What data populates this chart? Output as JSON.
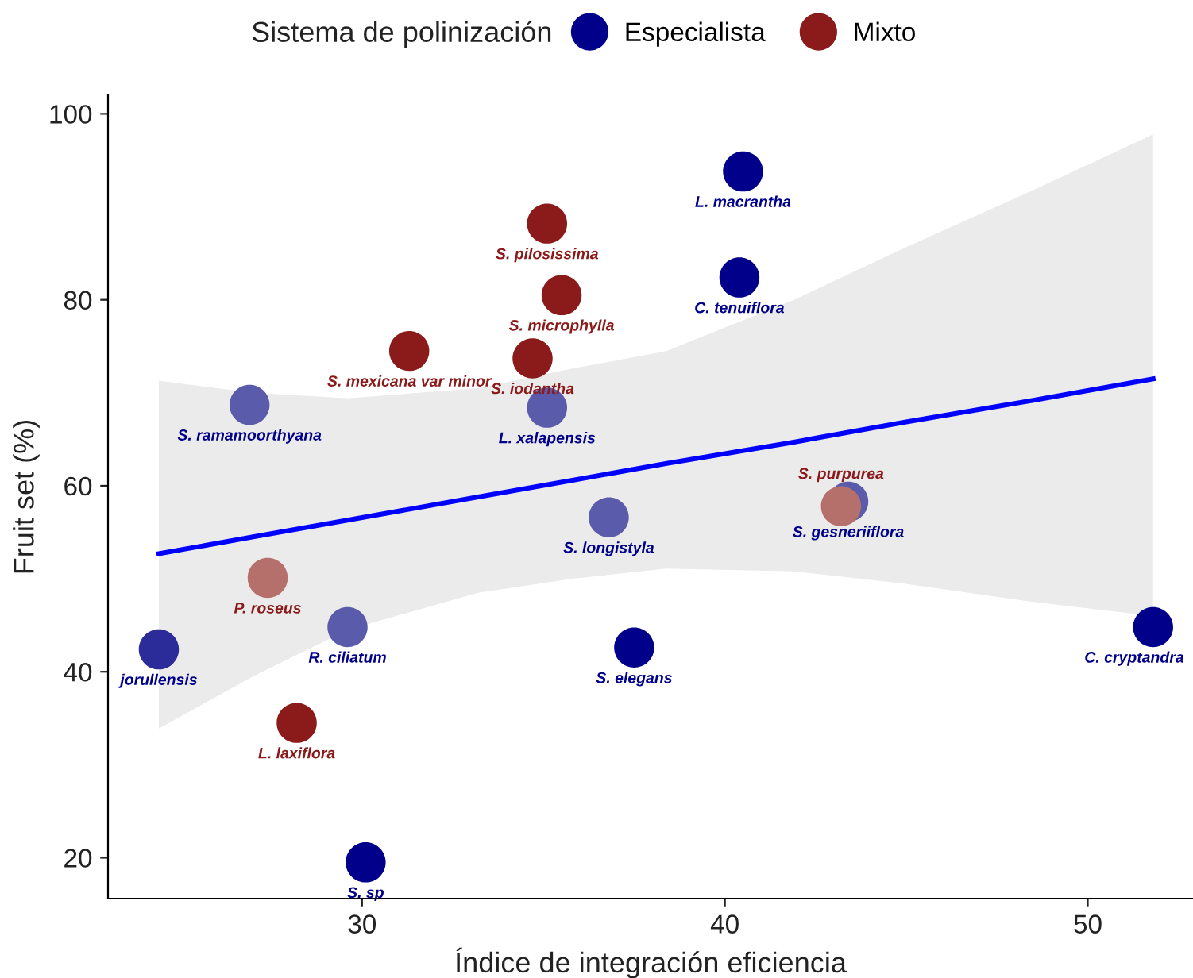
{
  "chart_data": {
    "type": "scatter",
    "xlabel": "Índice de integración eficiencia",
    "ylabel": "Fruit set (%)",
    "legend_title": "Sistema de polinización",
    "legend": "top",
    "grid": false,
    "xlim": [
      23.0,
      52.9
    ],
    "ylim": [
      15.6,
      102
    ],
    "xticks": [
      30,
      40,
      50
    ],
    "yticks": [
      20,
      40,
      60,
      80,
      100
    ],
    "series": [
      {
        "name": "Especialista",
        "color": "#00008b",
        "marker": "circle",
        "x": [
          24.4,
          26.9,
          29.6,
          30.1,
          35.1,
          36.8,
          37.5,
          40.5,
          40.4,
          43.4,
          51.8
        ],
        "values": [
          42.4,
          68.7,
          44.8,
          19.5,
          68.4,
          56.6,
          42.6,
          93.8,
          82.4,
          58.3,
          44.8
        ],
        "colors": [
          "#2b2b9a",
          "#5b5bab",
          "#5b5bab",
          "#00008b",
          "#5b5bab",
          "#5b5bab",
          "#00008b",
          "#00008b",
          "#00008b",
          "#5b5bab",
          "#00008b"
        ]
      },
      {
        "name": "Mixto",
        "color": "#8b1a1a",
        "marker": "circle",
        "x": [
          27.4,
          28.2,
          31.3,
          34.7,
          35.1,
          35.5,
          43.2
        ],
        "values": [
          50.1,
          34.5,
          74.5,
          73.7,
          88.2,
          80.5,
          57.8
        ],
        "colors": [
          "#b5706b",
          "#8b1a1a",
          "#8b1a1a",
          "#8b1a1a",
          "#8b1a1a",
          "#8b1a1a",
          "#b5706b"
        ]
      },
      {
        "type": "line",
        "color": "#0000ff",
        "marker": "none",
        "x": [
          24.4,
          27.0,
          29.6,
          33.2,
          35.8,
          38.4,
          41.9,
          44.9,
          48.5,
          51.8
        ],
        "values": [
          52.7,
          54.5,
          56.3,
          58.8,
          60.6,
          62.4,
          64.7,
          66.8,
          69.2,
          71.5
        ],
        "lower": [
          33.9,
          39.5,
          44.5,
          48.5,
          50.0,
          51.1,
          50.8,
          49.5,
          47.5,
          46.0
        ],
        "upper": [
          71.3,
          70.0,
          69.4,
          70.5,
          72.6,
          74.5,
          80.0,
          85.5,
          91.8,
          97.8
        ]
      }
    ],
    "annotations": [
      {
        "text": "jorullensis",
        "x": 24.4,
        "y": 42.4
      },
      {
        "text": "S. ramamoorthyana",
        "x": 26.9,
        "y": 68.7
      },
      {
        "text": "R. ciliatum",
        "x": 29.6,
        "y": 44.8
      },
      {
        "text": "S. sp",
        "x": 30.1,
        "y": 19.5
      },
      {
        "text": "L. xalapensis",
        "x": 35.1,
        "y": 68.4
      },
      {
        "text": "S. longistyla",
        "x": 36.8,
        "y": 56.6
      },
      {
        "text": "S. elegans",
        "x": 37.5,
        "y": 42.6
      },
      {
        "text": "L. macrantha",
        "x": 40.5,
        "y": 93.8
      },
      {
        "text": "C. tenuiflora",
        "x": 40.4,
        "y": 82.4
      },
      {
        "text": "S. gesneriiflora",
        "x": 43.4,
        "y": 58.3
      },
      {
        "text": "C. cryptandra",
        "x": 51.8,
        "y": 44.8
      },
      {
        "text": "P. roseus",
        "x": 27.4,
        "y": 50.1
      },
      {
        "text": "L. laxiflora",
        "x": 28.2,
        "y": 34.5
      },
      {
        "text": "S. mexicana var minor",
        "x": 31.3,
        "y": 74.5
      },
      {
        "text": "S. iodantha",
        "x": 34.7,
        "y": 73.7
      },
      {
        "text": "S. pilosissima",
        "x": 35.1,
        "y": 88.2
      },
      {
        "text": "S. microphylla",
        "x": 35.5,
        "y": 80.5
      },
      {
        "text": "S. purpurea",
        "x": 43.2,
        "y": 57.8
      }
    ]
  }
}
